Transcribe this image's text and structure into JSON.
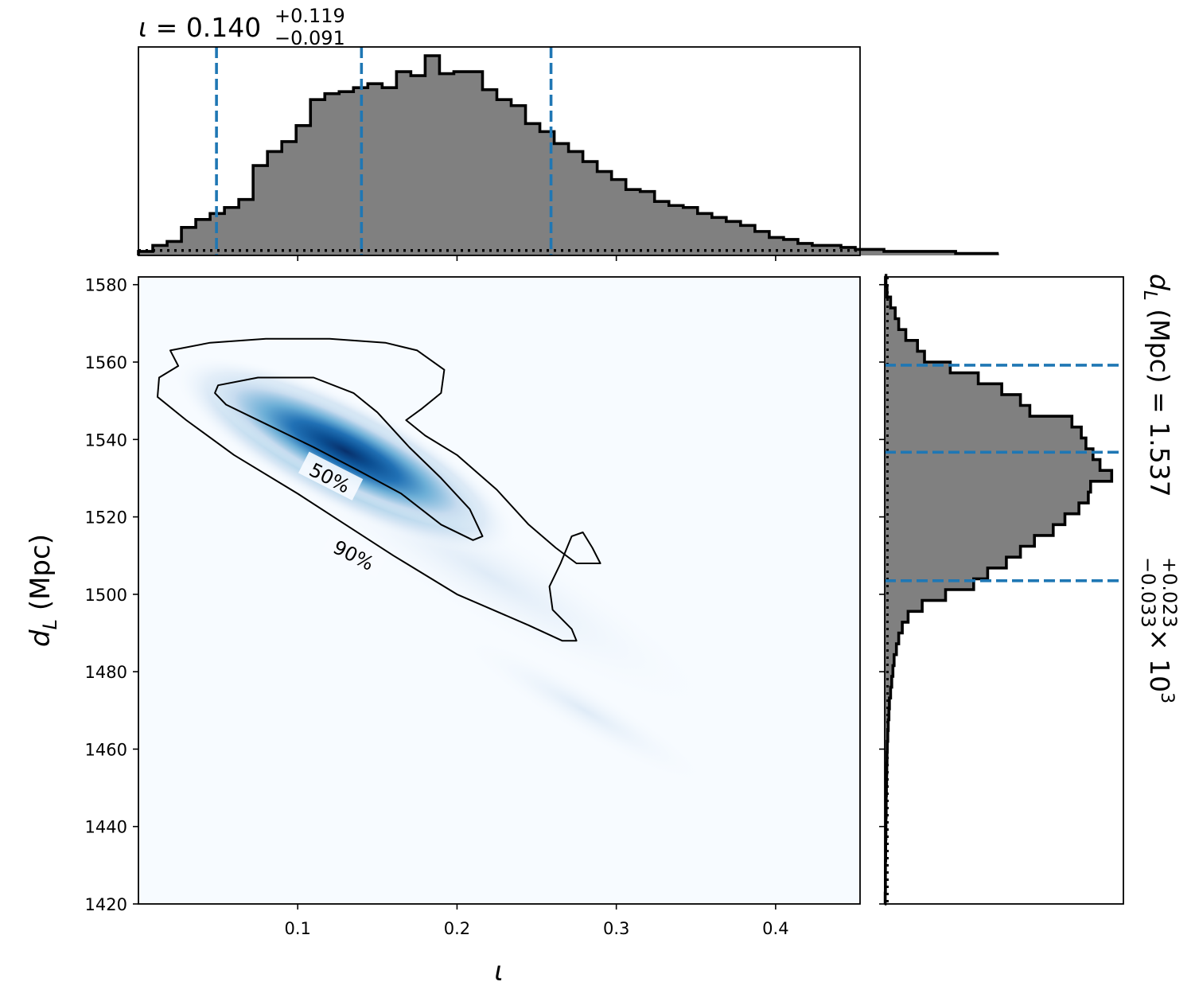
{
  "chart_data": [
    {
      "panel": "top-marginal",
      "type": "histogram",
      "title_symbol": "ι",
      "title_equals": " = ",
      "title_median": "0.140",
      "title_upper": "+0.119",
      "title_lower": "−0.091",
      "xlim": [
        0.0,
        0.453
      ],
      "bin_edges_start": 0.0,
      "bin_width": 0.009,
      "counts": [
        2,
        5,
        7,
        14,
        18,
        21,
        24,
        28,
        45,
        52,
        57,
        65,
        78,
        81,
        82,
        84,
        86,
        84,
        92,
        90,
        100,
        91,
        92,
        92,
        83,
        78,
        75,
        66,
        62,
        56,
        52,
        47,
        42,
        38,
        33,
        32,
        27,
        25,
        24,
        21,
        19,
        17,
        15,
        12,
        9,
        8,
        6,
        5,
        5,
        4,
        3,
        3,
        2,
        2,
        2,
        2,
        2,
        1,
        1,
        1
      ],
      "prior_level": 2.5,
      "quantile_lines": [
        0.049,
        0.14,
        0.259
      ],
      "x_ticks": [
        "0.1",
        "0.2",
        "0.3",
        "0.4"
      ]
    },
    {
      "panel": "joint",
      "type": "heatmap",
      "xlabel": "ι",
      "ylabel_main": "d",
      "ylabel_sub": "L",
      "ylabel_rest": " (Mpc)",
      "xlim": [
        0.0,
        0.453
      ],
      "ylim": [
        1420,
        1582
      ],
      "x_ticks": [
        "0.1",
        "0.2",
        "0.3",
        "0.4"
      ],
      "y_ticks": [
        "1420",
        "1440",
        "1460",
        "1480",
        "1500",
        "1520",
        "1540",
        "1560",
        "1580"
      ],
      "colormap": [
        "#f7fbff",
        "#c6dbef",
        "#6baed6",
        "#2171b5",
        "#08306b"
      ],
      "contour_labels": [
        "50%",
        "90%"
      ],
      "contour_90": [
        [
          0.025,
          1559
        ],
        [
          0.02,
          1563
        ],
        [
          0.045,
          1565
        ],
        [
          0.08,
          1566
        ],
        [
          0.12,
          1566
        ],
        [
          0.155,
          1565
        ],
        [
          0.175,
          1563
        ],
        [
          0.192,
          1558
        ],
        [
          0.19,
          1552
        ],
        [
          0.178,
          1548
        ],
        [
          0.168,
          1545
        ],
        [
          0.18,
          1541
        ],
        [
          0.2,
          1536
        ],
        [
          0.225,
          1527
        ],
        [
          0.245,
          1518
        ],
        [
          0.262,
          1512
        ],
        [
          0.275,
          1508
        ],
        [
          0.29,
          1508
        ],
        [
          0.285,
          1512
        ],
        [
          0.279,
          1516
        ],
        [
          0.272,
          1515
        ],
        [
          0.265,
          1508
        ],
        [
          0.258,
          1502
        ],
        [
          0.26,
          1496
        ],
        [
          0.272,
          1491
        ],
        [
          0.275,
          1488
        ],
        [
          0.266,
          1488
        ],
        [
          0.245,
          1492
        ],
        [
          0.2,
          1500
        ],
        [
          0.16,
          1510
        ],
        [
          0.13,
          1518
        ],
        [
          0.1,
          1526
        ],
        [
          0.06,
          1536
        ],
        [
          0.03,
          1545
        ],
        [
          0.012,
          1551
        ],
        [
          0.013,
          1556
        ]
      ],
      "contour_50": [
        [
          0.048,
          1552
        ],
        [
          0.05,
          1554
        ],
        [
          0.075,
          1556
        ],
        [
          0.11,
          1556
        ],
        [
          0.135,
          1552
        ],
        [
          0.15,
          1547
        ],
        [
          0.17,
          1538
        ],
        [
          0.19,
          1530
        ],
        [
          0.208,
          1522
        ],
        [
          0.216,
          1515
        ],
        [
          0.21,
          1514
        ],
        [
          0.19,
          1518
        ],
        [
          0.165,
          1526
        ],
        [
          0.138,
          1532
        ],
        [
          0.11,
          1538
        ],
        [
          0.08,
          1544
        ],
        [
          0.055,
          1549
        ]
      ],
      "density_mode": [
        0.13,
        1537
      ],
      "label_50_at": [
        0.12,
        1530
      ],
      "label_90_at": [
        0.135,
        1510
      ]
    },
    {
      "panel": "right-marginal",
      "type": "histogram",
      "label_main": "d",
      "label_sub": "L",
      "label_rest": " (Mpc) = 1.537",
      "label_upper": "+0.023",
      "label_lower": "−0.033",
      "label_multiplier": " × 10",
      "label_exponent": "3",
      "ylim": [
        1420,
        1582
      ],
      "bin_edges_start": 1420,
      "bin_width": 2.8,
      "counts": [
        0.2,
        0.3,
        0.3,
        0.3,
        0.4,
        0.4,
        0.5,
        0.5,
        0.6,
        0.6,
        0.7,
        0.8,
        0.9,
        1.0,
        1.1,
        1.3,
        1.5,
        1.8,
        2.0,
        2.5,
        3.0,
        3.5,
        4.0,
        5.0,
        6.0,
        7.5,
        10,
        16,
        26,
        38,
        44,
        52,
        58,
        64,
        72,
        77,
        83,
        87,
        88,
        97,
        92,
        89,
        86,
        84,
        80,
        62,
        58,
        50,
        40,
        28,
        17,
        14,
        9,
        6,
        4.5,
        2.5,
        1.0,
        0.5
      ],
      "prior_level": 0.5,
      "quantile_lines": [
        1503.5,
        1536.7,
        1559.2
      ],
      "xlim": [
        0,
        102
      ]
    }
  ]
}
